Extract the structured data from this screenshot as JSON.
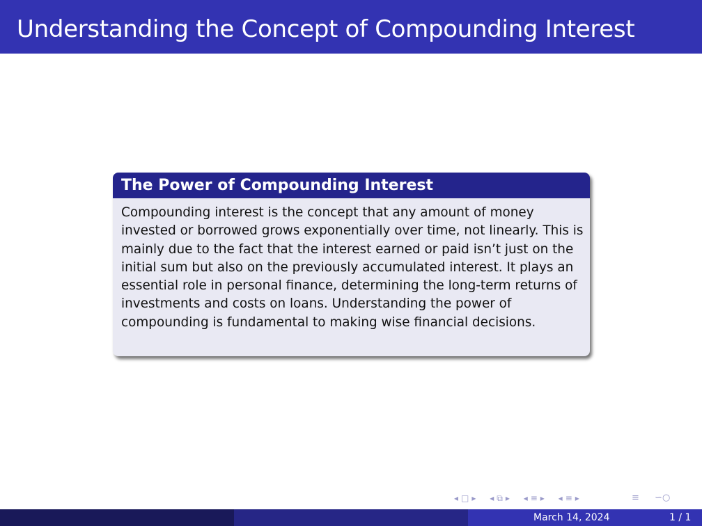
{
  "slide": {
    "title": "Understanding the Concept of Compounding Interest"
  },
  "block": {
    "title": "The Power of Compounding Interest",
    "body": "Compounding interest is the concept that any amount of money invested or borrowed grows exponentially over time, not linearly. This is mainly due to the fact that the interest earned or paid isn’t just on the initial sum but also on the previously accumulated interest. It plays an essential role in personal finance, determining the long-term returns of investments and costs on loans. Understanding the power of compounding is fundamental to making wise financial decisions."
  },
  "navigation": {
    "icons": [
      "slide-prev-icon",
      "frame-icon",
      "slide-next-icon",
      "section-prev-icon",
      "section-icon",
      "section-next-icon",
      "subsection-prev-icon",
      "subsection-icon",
      "subsection-next-icon",
      "outline-icon",
      "search-icon"
    ]
  },
  "footer": {
    "date": "March 14, 2024",
    "page": "1 / 1"
  },
  "colors": {
    "title_bar": "#3333b2",
    "block_header": "#24248c",
    "block_body": "#e9e9f3",
    "footer_left": "#191959",
    "footer_mid": "#262686",
    "footer_right": "#3333b2",
    "nav_icons": "#9999c9"
  }
}
